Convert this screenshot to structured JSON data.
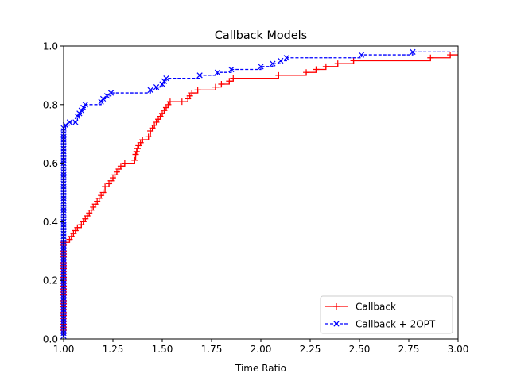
{
  "chart_data": {
    "type": "line",
    "title": "Callback Models",
    "xlabel": "Time Ratio",
    "ylabel": "",
    "xlim": [
      1.0,
      3.0
    ],
    "ylim": [
      0.0,
      1.0
    ],
    "xticks": [
      "1.00",
      "1.25",
      "1.50",
      "1.75",
      "2.00",
      "2.25",
      "2.50",
      "2.75",
      "3.00"
    ],
    "xtick_values": [
      1.0,
      1.25,
      1.5,
      1.75,
      2.0,
      2.25,
      2.5,
      2.75,
      3.0
    ],
    "yticks": [
      "0.0",
      "0.2",
      "0.4",
      "0.6",
      "0.8",
      "1.0"
    ],
    "ytick_values": [
      0.0,
      0.2,
      0.4,
      0.6,
      0.8,
      1.0
    ],
    "grid": false,
    "legend_position": "lower-right",
    "series": [
      {
        "name": "Callback",
        "color": "#ff0000",
        "linestyle": "solid",
        "marker": "+",
        "x": [
          1.0,
          1.0,
          1.0,
          1.0,
          1.0,
          1.0,
          1.0,
          1.0,
          1.0,
          1.0,
          1.0,
          1.0,
          1.0,
          1.0,
          1.0,
          1.0,
          1.0,
          1.0,
          1.0,
          1.0,
          1.0,
          1.0,
          1.0,
          1.0,
          1.0,
          1.0,
          1.0,
          1.0,
          1.0,
          1.0,
          1.0,
          1.0,
          1.03,
          1.04,
          1.05,
          1.06,
          1.07,
          1.09,
          1.1,
          1.11,
          1.12,
          1.13,
          1.14,
          1.15,
          1.16,
          1.17,
          1.18,
          1.19,
          1.2,
          1.21,
          1.23,
          1.24,
          1.25,
          1.26,
          1.27,
          1.28,
          1.29,
          1.31,
          1.36,
          1.365,
          1.37,
          1.375,
          1.38,
          1.39,
          1.4,
          1.43,
          1.44,
          1.45,
          1.46,
          1.47,
          1.48,
          1.49,
          1.5,
          1.51,
          1.52,
          1.53,
          1.54,
          1.6,
          1.63,
          1.64,
          1.65,
          1.68,
          1.77,
          1.8,
          1.84,
          1.86,
          2.09,
          2.23,
          2.28,
          2.33,
          2.39,
          2.47,
          2.86,
          2.96
        ],
        "y": [
          0.02,
          0.03,
          0.04,
          0.05,
          0.06,
          0.07,
          0.08,
          0.09,
          0.1,
          0.11,
          0.12,
          0.13,
          0.14,
          0.15,
          0.16,
          0.17,
          0.18,
          0.19,
          0.2,
          0.21,
          0.22,
          0.23,
          0.24,
          0.25,
          0.26,
          0.27,
          0.28,
          0.29,
          0.3,
          0.31,
          0.32,
          0.33,
          0.34,
          0.35,
          0.36,
          0.37,
          0.38,
          0.39,
          0.4,
          0.41,
          0.42,
          0.43,
          0.44,
          0.45,
          0.46,
          0.47,
          0.48,
          0.49,
          0.5,
          0.52,
          0.53,
          0.54,
          0.55,
          0.56,
          0.57,
          0.58,
          0.59,
          0.6,
          0.61,
          0.63,
          0.64,
          0.65,
          0.66,
          0.67,
          0.68,
          0.69,
          0.71,
          0.72,
          0.73,
          0.74,
          0.75,
          0.76,
          0.77,
          0.78,
          0.79,
          0.8,
          0.81,
          0.81,
          0.82,
          0.83,
          0.84,
          0.85,
          0.86,
          0.87,
          0.88,
          0.89,
          0.9,
          0.91,
          0.92,
          0.93,
          0.94,
          0.95,
          0.96,
          0.97
        ]
      },
      {
        "name": "Callback + 2OPT",
        "color": "#0000ff",
        "linestyle": "dashed",
        "marker": "x",
        "x": [
          1.0,
          1.0,
          1.0,
          1.0,
          1.0,
          1.0,
          1.0,
          1.0,
          1.0,
          1.0,
          1.0,
          1.0,
          1.0,
          1.0,
          1.0,
          1.0,
          1.0,
          1.0,
          1.0,
          1.0,
          1.0,
          1.0,
          1.0,
          1.0,
          1.0,
          1.0,
          1.0,
          1.0,
          1.0,
          1.0,
          1.0,
          1.0,
          1.0,
          1.0,
          1.0,
          1.0,
          1.0,
          1.0,
          1.0,
          1.0,
          1.0,
          1.0,
          1.0,
          1.0,
          1.0,
          1.0,
          1.0,
          1.0,
          1.0,
          1.0,
          1.0,
          1.0,
          1.0,
          1.0,
          1.0,
          1.0,
          1.0,
          1.0,
          1.0,
          1.0,
          1.0,
          1.0,
          1.0,
          1.0,
          1.0,
          1.0,
          1.0,
          1.0,
          1.0,
          1.0,
          1.0,
          1.0,
          1.01,
          1.03,
          1.06,
          1.07,
          1.08,
          1.09,
          1.1,
          1.11,
          1.19,
          1.2,
          1.22,
          1.24,
          1.44,
          1.47,
          1.5,
          1.51,
          1.52,
          1.69,
          1.78,
          1.85,
          2.0,
          2.06,
          2.1,
          2.13,
          2.51,
          2.77
        ],
        "y": [
          0.01,
          0.02,
          0.03,
          0.04,
          0.05,
          0.06,
          0.07,
          0.08,
          0.09,
          0.1,
          0.11,
          0.12,
          0.13,
          0.14,
          0.15,
          0.16,
          0.17,
          0.18,
          0.19,
          0.2,
          0.21,
          0.22,
          0.23,
          0.24,
          0.25,
          0.26,
          0.27,
          0.28,
          0.29,
          0.3,
          0.31,
          0.32,
          0.33,
          0.34,
          0.35,
          0.36,
          0.37,
          0.38,
          0.39,
          0.4,
          0.41,
          0.42,
          0.43,
          0.44,
          0.45,
          0.46,
          0.47,
          0.48,
          0.49,
          0.5,
          0.51,
          0.52,
          0.53,
          0.54,
          0.55,
          0.56,
          0.57,
          0.58,
          0.59,
          0.6,
          0.61,
          0.62,
          0.63,
          0.64,
          0.65,
          0.66,
          0.67,
          0.68,
          0.69,
          0.7,
          0.71,
          0.72,
          0.73,
          0.74,
          0.74,
          0.76,
          0.77,
          0.78,
          0.79,
          0.8,
          0.81,
          0.82,
          0.83,
          0.84,
          0.85,
          0.86,
          0.87,
          0.88,
          0.89,
          0.9,
          0.91,
          0.92,
          0.93,
          0.94,
          0.95,
          0.96,
          0.97,
          0.98
        ]
      }
    ]
  }
}
